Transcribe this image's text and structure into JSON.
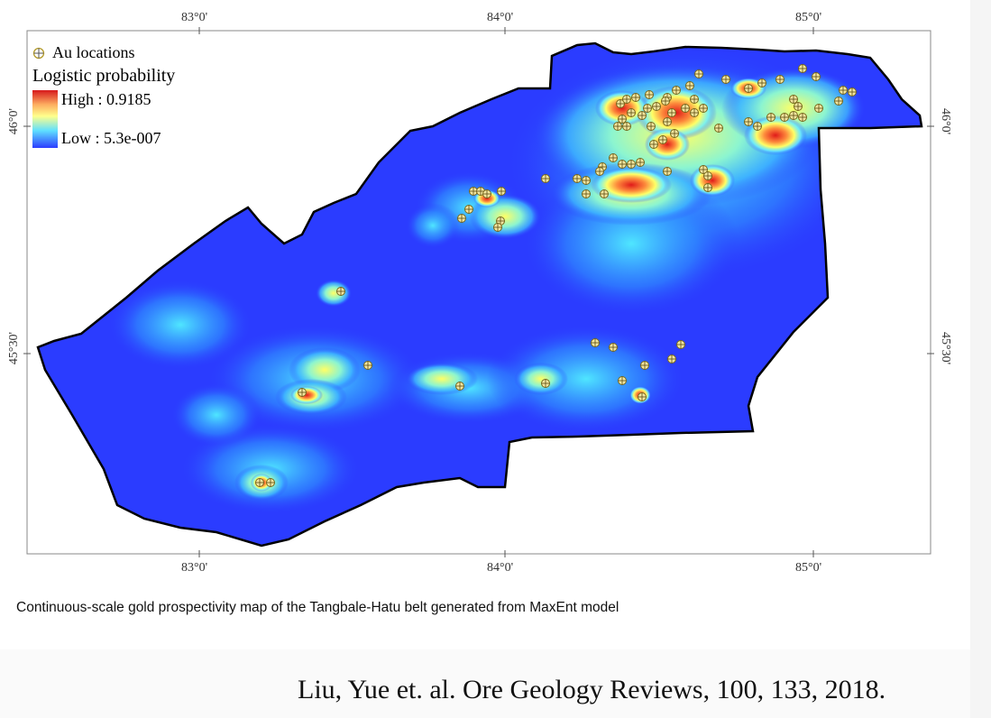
{
  "map": {
    "ticks_top": [
      "83°0'",
      "84°0'",
      "85°0'"
    ],
    "ticks_bottom": [
      "83°0'",
      "84°0'",
      "85°0'"
    ],
    "ticks_left": [
      "46°0'",
      "45°30'"
    ],
    "ticks_right": [
      "46°0'",
      "45°30'"
    ],
    "legend": {
      "points_label": "Au locations",
      "title": "Logistic probability",
      "high_label": "High : 0.9185",
      "low_label": "Low : 5.3e-007",
      "colors": {
        "high": "#d7191c",
        "mid_high": "#fdae61",
        "mid": "#ffff8c",
        "mid_low": "#5fe0ff",
        "low": "#2b3cff"
      }
    },
    "colors": {
      "background": "#2b3cff",
      "outline": "#000000",
      "point": "#d4c15a"
    }
  },
  "caption": "Continuous-scale gold prospectivity map of the Tangbale-Hatu belt generated from MaxEnt model",
  "citation": "Liu, Yue et. al. Ore Geology Reviews, 100, 133, 2018."
}
